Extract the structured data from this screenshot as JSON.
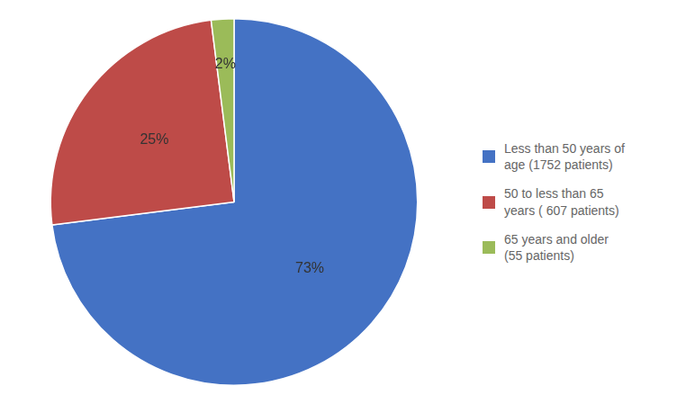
{
  "chart_data": {
    "type": "pie",
    "categories": [
      "Less than 50 years of\nage (1752 patients)",
      "50 to less than 65\nyears ( 607 patients)",
      "65 years and older\n(55 patients)"
    ],
    "values": [
      73,
      25,
      2
    ],
    "value_labels": [
      "73%",
      "25%",
      "2%"
    ],
    "colors": [
      "#4472C4",
      "#BE4B48",
      "#9BBB59"
    ],
    "data_labels": true,
    "legend": "right"
  }
}
